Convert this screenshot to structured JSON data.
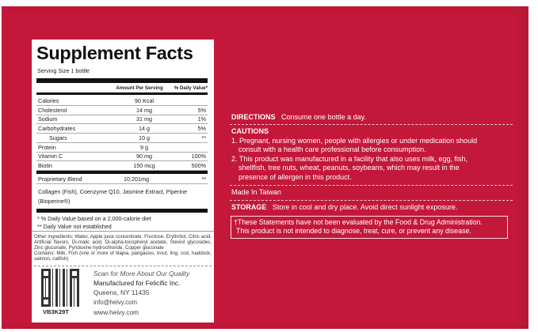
{
  "label": {
    "title": "Supplement Facts",
    "serving_size": "Serving Size 1 bottle",
    "col_amount": "Amount Per Serving",
    "col_dv": "% Daily Value*",
    "rows": [
      {
        "name": "Calories",
        "amount": "90 Kcal",
        "dv": ""
      },
      {
        "name": "Cholesterol",
        "amount": "14 mg",
        "dv": "5%"
      },
      {
        "name": "Sodium",
        "amount": "31 mg",
        "dv": "1%"
      },
      {
        "name": "Carbohydrates",
        "amount": "14 g",
        "dv": "5%"
      },
      {
        "name": "Sugars",
        "amount": "10 g",
        "dv": "**"
      },
      {
        "name": "Protein",
        "amount": "9 g",
        "dv": ""
      },
      {
        "name": "Vitamin C",
        "amount": "90 mg",
        "dv": "100%"
      },
      {
        "name": "Biotin",
        "amount": "150 mcg",
        "dv": "500%"
      }
    ],
    "blend": {
      "name": "Proprietary Blend",
      "amount": "10,201mg",
      "dv": "**"
    },
    "blend_ingredients": "Collagen (Fish), Coenzyme Q10, Jasmine Extract, Piperine (Bioperine®)",
    "footnote1": "* % Daily Value based on a 2,000-calorie diet",
    "footnote2": "** Daily Value not established",
    "other_ingredients": "Other ingredients: Water, Apple juice concentrate, Fructose, Erythritol, Citric acid, Artificial flavors, Di-malic acid, Di-alpha-tocopheryl acetate, Steviol glycosides, Zinc gluconate, Pyridoxine hydrochloride, Copper gluconate",
    "contains": "Contains: Milk, Fish (one or more of tilapia, pangasius, trout, ling, cod, haddock, salmon, catfish)",
    "qr_code": "VB3K29T",
    "scan_text": "Scan for More About Our Quality",
    "manufacturer": "Manufactured for Felicific Inc.",
    "address": "Queens, NY 11435",
    "email": "info@heivy.com",
    "website": "www.heivy.com"
  },
  "info": {
    "directions_label": "DIRECTIONS",
    "directions": "Consume one bottle a day.",
    "cautions_label": "CAUTIONS",
    "caution1": "1. Pregnant, nursing women, people with allergies or under medication should",
    "caution1b": "consult with a health care professional before consumption.",
    "caution2": "2. This product was manufactured in a facility that also uses milk, egg, fish,",
    "caution2b": "shellfish, tree nuts, wheat, peanuts, soybeans, which may result in the",
    "caution2c": "presence of allergen in this product.",
    "origin": "Made In Taiwan",
    "storage_label": "STORAGE",
    "storage": "Store in cool and dry place. Avoid direct sunlight exposure.",
    "disclaimer1": "†These Statements have not been evaluated by the Food & Drug Administration.",
    "disclaimer2": "This product is not intended to diagnose, treat, cure, or prevent any disease."
  },
  "colors": {
    "panel": "#c4183a",
    "label": "#ffffff"
  }
}
